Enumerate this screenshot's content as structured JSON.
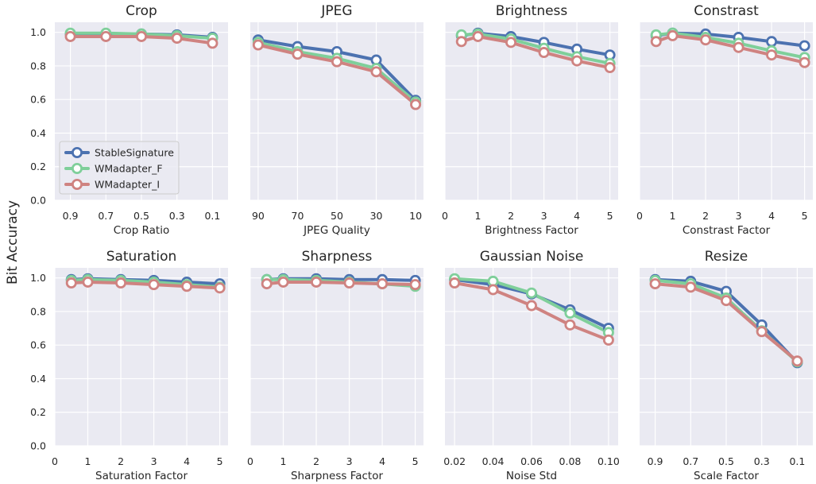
{
  "figure": {
    "ylabel": "Bit Accuracy"
  },
  "colors": {
    "StableSignature": "#4c72b0",
    "WMadapter_F": "#7fcf9a",
    "WMadapter_I": "#cf8381",
    "panel_bg": "#eaeaf2",
    "grid": "#ffffff"
  },
  "chart_data": [
    {
      "type": "line",
      "title": "Crop",
      "xlabel": "Crop Ratio",
      "ylabel": "Bit Accuracy",
      "x": [
        0.9,
        0.7,
        0.5,
        0.3,
        0.1
      ],
      "xlim": [
        0.9875,
        0.0125
      ],
      "xticks": [
        0.9,
        0.7,
        0.5,
        0.3,
        0.1
      ],
      "xticklabels": [
        "0.9",
        "0.7",
        "0.5",
        "0.3",
        "0.1"
      ],
      "ylim": [
        0,
        1.06
      ],
      "yticks": [
        0,
        0.2,
        0.4,
        0.6,
        0.8,
        1.0
      ],
      "yticklabels": [
        "0.0",
        "0.2",
        "0.4",
        "0.6",
        "0.8",
        "1.0"
      ],
      "grid": true,
      "legend": "center-left",
      "series": [
        {
          "name": "StableSignature",
          "values": [
            0.99,
            0.99,
            0.99,
            0.985,
            0.97
          ]
        },
        {
          "name": "WMadapter_F",
          "values": [
            0.995,
            0.995,
            0.99,
            0.98,
            0.965
          ]
        },
        {
          "name": "WMadapter_I",
          "values": [
            0.975,
            0.975,
            0.975,
            0.965,
            0.935
          ]
        }
      ]
    },
    {
      "type": "line",
      "title": "JPEG",
      "xlabel": "JPEG Quality",
      "ylabel": "Bit Accuracy",
      "x": [
        90,
        70,
        50,
        30,
        10
      ],
      "xlim": [
        94,
        6
      ],
      "xticks": [
        90,
        70,
        50,
        30,
        10
      ],
      "xticklabels": [
        "90",
        "70",
        "50",
        "30",
        "10"
      ],
      "ylim": [
        0,
        1.06
      ],
      "yticks": [
        0,
        0.2,
        0.4,
        0.6,
        0.8,
        1.0
      ],
      "yticklabels": [],
      "grid": true,
      "series": [
        {
          "name": "StableSignature",
          "values": [
            0.955,
            0.915,
            0.885,
            0.835,
            0.595
          ]
        },
        {
          "name": "WMadapter_F",
          "values": [
            0.94,
            0.885,
            0.845,
            0.785,
            0.585
          ]
        },
        {
          "name": "WMadapter_I",
          "values": [
            0.925,
            0.87,
            0.825,
            0.765,
            0.57
          ]
        }
      ]
    },
    {
      "type": "line",
      "title": "Brightness",
      "xlabel": "Brightness Factor",
      "ylabel": "Bit Accuracy",
      "x": [
        0.5,
        1,
        2,
        3,
        4,
        5
      ],
      "xlim": [
        0,
        5.25
      ],
      "xticks": [
        0,
        1,
        2,
        3,
        4,
        5
      ],
      "xticklabels": [
        "0",
        "1",
        "2",
        "3",
        "4",
        "5"
      ],
      "ylim": [
        0,
        1.06
      ],
      "yticks": [
        0,
        0.2,
        0.4,
        0.6,
        0.8,
        1.0
      ],
      "yticklabels": [],
      "grid": true,
      "series": [
        {
          "name": "StableSignature",
          "values": [
            0.98,
            0.995,
            0.975,
            0.94,
            0.9,
            0.865
          ]
        },
        {
          "name": "WMadapter_F",
          "values": [
            0.985,
            0.99,
            0.96,
            0.905,
            0.855,
            0.815
          ]
        },
        {
          "name": "WMadapter_I",
          "values": [
            0.945,
            0.975,
            0.94,
            0.88,
            0.83,
            0.79
          ]
        }
      ]
    },
    {
      "type": "line",
      "title": "Constrast",
      "xlabel": "Constrast Factor",
      "ylabel": "Bit Accuracy",
      "x": [
        0.5,
        1,
        2,
        3,
        4,
        5
      ],
      "xlim": [
        0,
        5.25
      ],
      "xticks": [
        0,
        1,
        2,
        3,
        4,
        5
      ],
      "xticklabels": [
        "0",
        "1",
        "2",
        "3",
        "4",
        "5"
      ],
      "ylim": [
        0,
        1.06
      ],
      "yticks": [
        0,
        0.2,
        0.4,
        0.6,
        0.8,
        1.0
      ],
      "yticklabels": [],
      "grid": true,
      "series": [
        {
          "name": "StableSignature",
          "values": [
            0.98,
            0.995,
            0.99,
            0.97,
            0.945,
            0.92
          ]
        },
        {
          "name": "WMadapter_F",
          "values": [
            0.985,
            0.995,
            0.97,
            0.935,
            0.89,
            0.85
          ]
        },
        {
          "name": "WMadapter_I",
          "values": [
            0.945,
            0.98,
            0.955,
            0.91,
            0.865,
            0.82
          ]
        }
      ]
    },
    {
      "type": "line",
      "title": "Saturation",
      "xlabel": "Saturation Factor",
      "ylabel": "Bit Accuracy",
      "x": [
        0.5,
        1,
        2,
        3,
        4,
        5
      ],
      "xlim": [
        0,
        5.25
      ],
      "xticks": [
        0,
        1,
        2,
        3,
        4,
        5
      ],
      "xticklabels": [
        "0",
        "1",
        "2",
        "3",
        "4",
        "5"
      ],
      "ylim": [
        0,
        1.06
      ],
      "yticks": [
        0,
        0.2,
        0.4,
        0.6,
        0.8,
        1.0
      ],
      "yticklabels": [
        "0.0",
        "0.2",
        "0.4",
        "0.6",
        "0.8",
        "1.0"
      ],
      "grid": true,
      "series": [
        {
          "name": "StableSignature",
          "values": [
            0.99,
            0.995,
            0.99,
            0.985,
            0.975,
            0.965
          ]
        },
        {
          "name": "WMadapter_F",
          "values": [
            0.985,
            0.99,
            0.985,
            0.975,
            0.96,
            0.945
          ]
        },
        {
          "name": "WMadapter_I",
          "values": [
            0.97,
            0.975,
            0.97,
            0.96,
            0.95,
            0.94
          ]
        }
      ]
    },
    {
      "type": "line",
      "title": "Sharpness",
      "xlabel": "Sharpness Factor",
      "ylabel": "Bit Accuracy",
      "x": [
        0.5,
        1,
        2,
        3,
        4,
        5
      ],
      "xlim": [
        0,
        5.25
      ],
      "xticks": [
        0,
        1,
        2,
        3,
        4,
        5
      ],
      "xticklabels": [
        "0",
        "1",
        "2",
        "3",
        "4",
        "5"
      ],
      "ylim": [
        0,
        1.06
      ],
      "yticks": [
        0,
        0.2,
        0.4,
        0.6,
        0.8,
        1.0
      ],
      "yticklabels": [],
      "grid": true,
      "series": [
        {
          "name": "StableSignature",
          "values": [
            0.99,
            0.995,
            0.995,
            0.99,
            0.99,
            0.985
          ]
        },
        {
          "name": "WMadapter_F",
          "values": [
            0.99,
            0.99,
            0.985,
            0.975,
            0.965,
            0.95
          ]
        },
        {
          "name": "WMadapter_I",
          "values": [
            0.965,
            0.975,
            0.975,
            0.97,
            0.965,
            0.96
          ]
        }
      ]
    },
    {
      "type": "line",
      "title": "Gaussian Noise",
      "xlabel": "Noise Std",
      "ylabel": "Bit Accuracy",
      "x": [
        0.02,
        0.04,
        0.06,
        0.08,
        0.1
      ],
      "xlim": [
        0.015,
        0.105
      ],
      "xticks": [
        0.02,
        0.04,
        0.06,
        0.08,
        0.1
      ],
      "xticklabels": [
        "0.02",
        "0.04",
        "0.06",
        "0.08",
        "0.10"
      ],
      "ylim": [
        0,
        1.06
      ],
      "yticks": [
        0,
        0.2,
        0.4,
        0.6,
        0.8,
        1.0
      ],
      "yticklabels": [],
      "grid": true,
      "series": [
        {
          "name": "StableSignature",
          "values": [
            0.99,
            0.96,
            0.905,
            0.81,
            0.7
          ]
        },
        {
          "name": "WMadapter_F",
          "values": [
            0.995,
            0.98,
            0.91,
            0.79,
            0.675
          ]
        },
        {
          "name": "WMadapter_I",
          "values": [
            0.97,
            0.93,
            0.835,
            0.72,
            0.63
          ]
        }
      ]
    },
    {
      "type": "line",
      "title": "Resize",
      "xlabel": "Scale Factor",
      "ylabel": "Bit Accuracy",
      "x": [
        0.9,
        0.7,
        0.5,
        0.3,
        0.1
      ],
      "xlim": [
        0.9875,
        0.0125
      ],
      "xticks": [
        0.9,
        0.7,
        0.5,
        0.3,
        0.1
      ],
      "xticklabels": [
        "0.9",
        "0.7",
        "0.5",
        "0.3",
        "0.1"
      ],
      "ylim": [
        0,
        1.06
      ],
      "yticks": [
        0,
        0.2,
        0.4,
        0.6,
        0.8,
        1.0
      ],
      "yticklabels": [],
      "grid": true,
      "series": [
        {
          "name": "StableSignature",
          "values": [
            0.99,
            0.98,
            0.92,
            0.72,
            0.495
          ]
        },
        {
          "name": "WMadapter_F",
          "values": [
            0.985,
            0.965,
            0.88,
            0.685,
            0.5
          ]
        },
        {
          "name": "WMadapter_I",
          "values": [
            0.965,
            0.945,
            0.865,
            0.68,
            0.505
          ]
        }
      ]
    }
  ]
}
